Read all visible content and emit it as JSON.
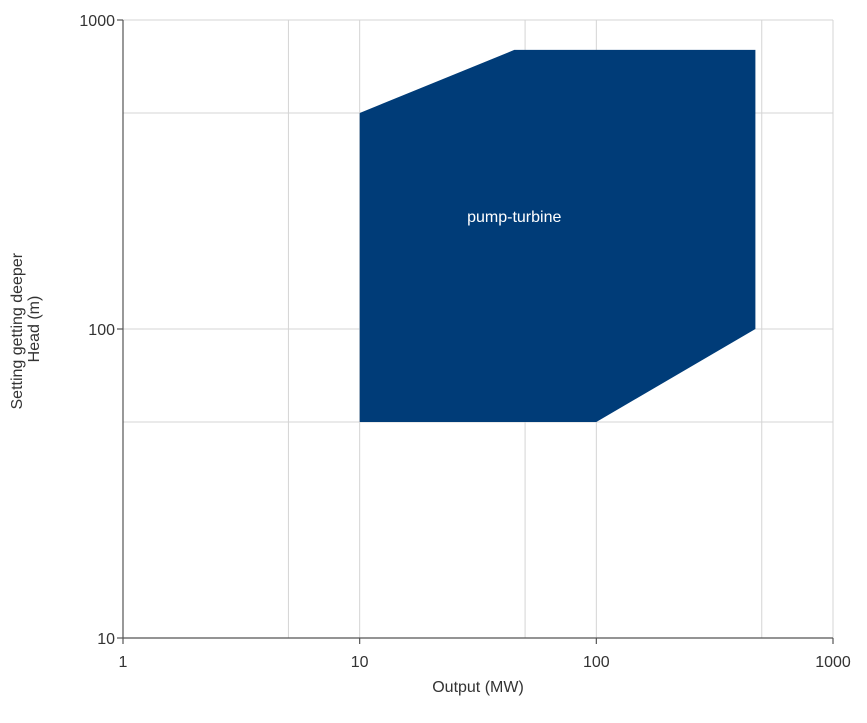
{
  "chart_data": {
    "type": "area",
    "x_scale": "log",
    "y_scale": "log",
    "xlim": [
      1,
      1000
    ],
    "ylim": [
      10,
      1000
    ],
    "x_ticks": [
      1,
      10,
      100,
      1000
    ],
    "y_ticks": [
      10,
      100,
      1000
    ],
    "x_tick_labels": [
      "1",
      "10",
      "100",
      "1000"
    ],
    "y_tick_labels": [
      "10",
      "100",
      "1000"
    ],
    "x_grid": [
      1,
      5,
      10,
      50,
      100,
      500,
      1000
    ],
    "y_grid": [
      50,
      100,
      500,
      1000
    ],
    "xlabel": "Output (MW)",
    "ylabel_lines": [
      "Setting getting deeper",
      "Head (m)"
    ],
    "grid": true,
    "regions": [
      {
        "label": "pump-turbine",
        "color": "#003c78",
        "polygon": [
          [
            10,
            500
          ],
          [
            45,
            800
          ],
          [
            470,
            800
          ],
          [
            470,
            100
          ],
          [
            100,
            50
          ],
          [
            10,
            50
          ]
        ],
        "label_at": [
          45,
          230
        ]
      }
    ]
  }
}
